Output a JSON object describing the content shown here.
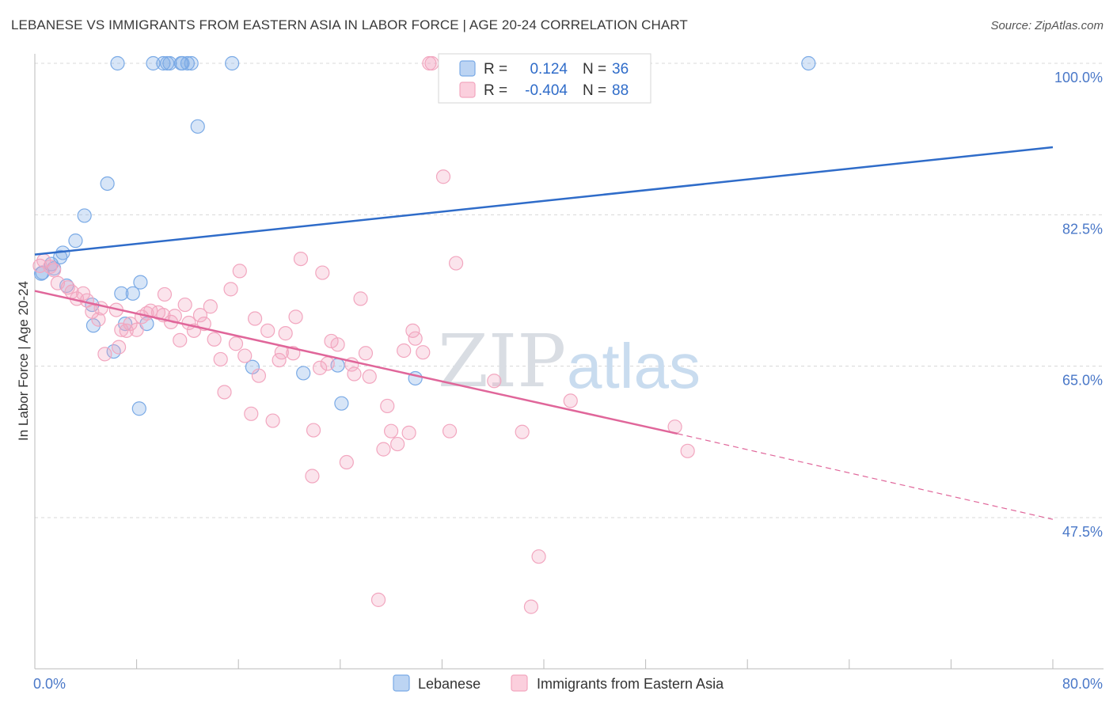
{
  "header": {
    "title": "LEBANESE VS IMMIGRANTS FROM EASTERN ASIA IN LABOR FORCE | AGE 20-24 CORRELATION CHART",
    "source": "Source: ZipAtlas.com"
  },
  "watermark": {
    "zip": "ZIP",
    "atlas": "atlas"
  },
  "chart_data": {
    "type": "scatter",
    "ylabel": "In Labor Force | Age 20-24",
    "xlim": [
      0,
      80
    ],
    "ylim": [
      33,
      102
    ],
    "y_ticks": [
      {
        "value": 100,
        "label": "100.0%"
      },
      {
        "value": 82.5,
        "label": "82.5%"
      },
      {
        "value": 65,
        "label": "65.0%"
      },
      {
        "value": 47.5,
        "label": "47.5%"
      }
    ],
    "x_tick_labels": {
      "min": "0.0%",
      "max": "80.0%"
    },
    "grid": true,
    "legend_position": "top-center",
    "series": [
      {
        "name": "Lebanese",
        "color": "#7aaae6",
        "line_color": "#2f6cc9",
        "R": "0.124",
        "N": "36",
        "trend": {
          "x": [
            0,
            80
          ],
          "y": [
            77.9,
            90.3
          ]
        },
        "points": [
          [
            0.5,
            75.7
          ],
          [
            0.6,
            75.8
          ],
          [
            1.3,
            76.8
          ],
          [
            2.0,
            77.6
          ],
          [
            2.2,
            78.1
          ],
          [
            2.5,
            74.3
          ],
          [
            3.2,
            79.5
          ],
          [
            3.9,
            82.4
          ],
          [
            4.5,
            72.1
          ],
          [
            4.6,
            69.7
          ],
          [
            5.7,
            86.1
          ],
          [
            6.2,
            66.7
          ],
          [
            6.5,
            100.0
          ],
          [
            6.8,
            73.4
          ],
          [
            7.1,
            69.9
          ],
          [
            7.7,
            73.4
          ],
          [
            8.2,
            60.1
          ],
          [
            8.3,
            74.7
          ],
          [
            8.8,
            69.9
          ],
          [
            9.3,
            100.0
          ],
          [
            10.1,
            100.0
          ],
          [
            10.4,
            100.0
          ],
          [
            10.6,
            100.0
          ],
          [
            11.5,
            100.0
          ],
          [
            11.6,
            100.0
          ],
          [
            12.0,
            100.0
          ],
          [
            12.3,
            100.0
          ],
          [
            12.8,
            92.7
          ],
          [
            15.5,
            100.0
          ],
          [
            17.1,
            64.9
          ],
          [
            21.1,
            64.2
          ],
          [
            23.8,
            65.1
          ],
          [
            24.1,
            60.7
          ],
          [
            29.9,
            63.6
          ],
          [
            60.8,
            100.0
          ],
          [
            1.5,
            76.3
          ]
        ]
      },
      {
        "name": "Immigrants from Eastern Asia",
        "color": "#f2a6bf",
        "line_color": "#e0669a",
        "R": "-0.404",
        "N": "88",
        "trend": {
          "x": [
            0,
            50.5,
            80
          ],
          "y": [
            73.7,
            57.2,
            47.3
          ]
        },
        "points": [
          [
            0.4,
            76.6
          ],
          [
            0.7,
            77.2
          ],
          [
            1.2,
            76.5
          ],
          [
            1.5,
            76.1
          ],
          [
            1.8,
            74.6
          ],
          [
            2.6,
            74.1
          ],
          [
            2.9,
            73.6
          ],
          [
            3.3,
            72.8
          ],
          [
            3.8,
            73.4
          ],
          [
            4.1,
            72.6
          ],
          [
            4.5,
            71.3
          ],
          [
            5.0,
            70.4
          ],
          [
            5.2,
            71.7
          ],
          [
            5.5,
            66.4
          ],
          [
            6.4,
            71.5
          ],
          [
            6.6,
            67.2
          ],
          [
            6.8,
            69.2
          ],
          [
            7.2,
            69.1
          ],
          [
            7.5,
            69.9
          ],
          [
            8.0,
            69.2
          ],
          [
            8.4,
            70.7
          ],
          [
            8.8,
            71.1
          ],
          [
            9.1,
            71.4
          ],
          [
            9.7,
            71.2
          ],
          [
            10.1,
            70.9
          ],
          [
            10.2,
            73.3
          ],
          [
            10.7,
            70.1
          ],
          [
            11.0,
            70.8
          ],
          [
            11.4,
            68.0
          ],
          [
            11.8,
            72.1
          ],
          [
            12.1,
            70.0
          ],
          [
            12.5,
            69.1
          ],
          [
            13.0,
            70.9
          ],
          [
            13.3,
            69.9
          ],
          [
            13.8,
            71.9
          ],
          [
            14.1,
            68.1
          ],
          [
            14.6,
            65.8
          ],
          [
            14.9,
            62.0
          ],
          [
            15.4,
            73.9
          ],
          [
            15.8,
            67.6
          ],
          [
            16.1,
            76.0
          ],
          [
            16.5,
            66.2
          ],
          [
            17.0,
            59.5
          ],
          [
            17.6,
            63.9
          ],
          [
            17.3,
            70.5
          ],
          [
            18.3,
            69.1
          ],
          [
            18.7,
            58.7
          ],
          [
            19.2,
            65.7
          ],
          [
            19.4,
            66.6
          ],
          [
            19.7,
            68.8
          ],
          [
            20.3,
            66.5
          ],
          [
            20.5,
            70.7
          ],
          [
            20.9,
            77.4
          ],
          [
            21.8,
            52.3
          ],
          [
            21.9,
            57.6
          ],
          [
            22.4,
            64.8
          ],
          [
            22.6,
            75.8
          ],
          [
            23.0,
            65.3
          ],
          [
            23.3,
            67.9
          ],
          [
            23.8,
            67.5
          ],
          [
            24.5,
            53.9
          ],
          [
            24.9,
            65.2
          ],
          [
            25.1,
            64.1
          ],
          [
            25.6,
            72.8
          ],
          [
            26.0,
            66.5
          ],
          [
            27.0,
            38.0
          ],
          [
            27.4,
            55.4
          ],
          [
            27.7,
            60.4
          ],
          [
            28.0,
            57.5
          ],
          [
            28.5,
            56.0
          ],
          [
            29.0,
            66.8
          ],
          [
            29.4,
            57.3
          ],
          [
            29.7,
            69.1
          ],
          [
            29.9,
            68.2
          ],
          [
            30.5,
            66.6
          ],
          [
            31.2,
            100.0
          ],
          [
            32.1,
            86.9
          ],
          [
            32.6,
            57.5
          ],
          [
            33.1,
            76.9
          ],
          [
            36.1,
            63.3
          ],
          [
            38.3,
            57.4
          ],
          [
            39.0,
            37.2
          ],
          [
            39.6,
            43.0
          ],
          [
            42.1,
            61.0
          ],
          [
            50.3,
            58.0
          ],
          [
            51.3,
            55.2
          ],
          [
            31.0,
            100.0
          ],
          [
            26.3,
            63.8
          ]
        ]
      }
    ]
  }
}
